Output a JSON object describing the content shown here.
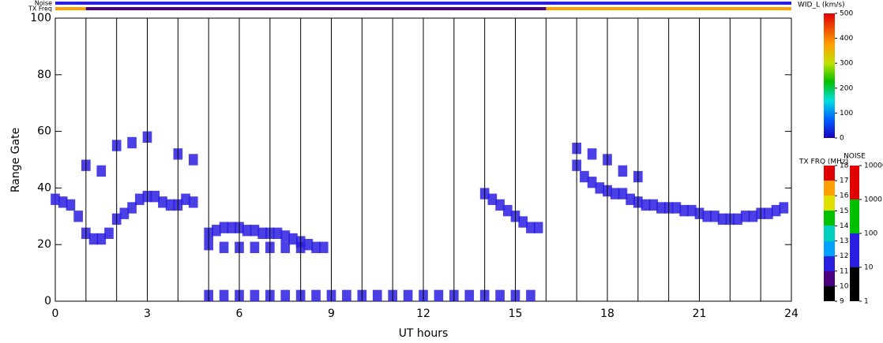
{
  "chart_data": {
    "type": "range-time",
    "xlabel": "UT hours",
    "ylabel": "Range Gate",
    "xlim": [
      0,
      24
    ],
    "ylim": [
      0,
      100
    ],
    "xticks": [
      0,
      3,
      6,
      9,
      12,
      15,
      18,
      21,
      24
    ],
    "yticks": [
      0,
      20,
      40,
      60,
      80,
      100
    ],
    "noise_label": "Noise",
    "txfreq_label": "TX Freq",
    "tx_low_span": [
      1,
      16
    ],
    "color": "#2a1fe0",
    "points": {
      "x": [
        0,
        0.25,
        0.5,
        0.75,
        1,
        1.25,
        1.5,
        1.75,
        2,
        2.25,
        2.5,
        2.75,
        3,
        3.25,
        3.5,
        3.75,
        4,
        4.25,
        4.5,
        5,
        5.25,
        5.5,
        5.75,
        6,
        6.25,
        6.5,
        6.75,
        7,
        7.25,
        7.5,
        7.75,
        8,
        8.25,
        8.5,
        8.75,
        5,
        5.5,
        6,
        6.5,
        7,
        7.5,
        8,
        14,
        14.25,
        14.5,
        14.75,
        15,
        15.25,
        15.5,
        15.75,
        17,
        17.25,
        17.5,
        17.75,
        18,
        18.25,
        18.5,
        18.75,
        19,
        19.25,
        19.5,
        19.75,
        20,
        20.25,
        20.5,
        20.75,
        21,
        21.25,
        21.5,
        21.75,
        22,
        22.25,
        22.5,
        22.75,
        23,
        23.25,
        23.5,
        23.75,
        5,
        5.5,
        6,
        6.5,
        7,
        7.5,
        8,
        8.5,
        9,
        9.5,
        10,
        10.5,
        11,
        11.5,
        12,
        12.5,
        13,
        13.5,
        14,
        14.5,
        15,
        15.5,
        1,
        1.5,
        2,
        2.5,
        3,
        4,
        4.5,
        17,
        17.5,
        18,
        18.5,
        19
      ],
      "y": [
        36,
        35,
        34,
        30,
        24,
        22,
        22,
        24,
        29,
        31,
        33,
        36,
        37,
        37,
        35,
        34,
        34,
        36,
        35,
        24,
        25,
        26,
        26,
        26,
        25,
        25,
        24,
        24,
        24,
        23,
        22,
        21,
        20,
        19,
        19,
        20,
        19,
        19,
        19,
        19,
        19,
        19,
        38,
        36,
        34,
        32,
        30,
        28,
        26,
        26,
        48,
        44,
        42,
        40,
        39,
        38,
        38,
        36,
        35,
        34,
        34,
        33,
        33,
        33,
        32,
        32,
        31,
        30,
        30,
        29,
        29,
        29,
        30,
        30,
        31,
        31,
        32,
        33,
        2,
        2,
        2,
        2,
        2,
        2,
        2,
        2,
        2,
        2,
        2,
        2,
        2,
        2,
        2,
        2,
        2,
        2,
        2,
        2,
        2,
        2,
        48,
        46,
        55,
        56,
        58,
        52,
        50,
        54,
        52,
        50,
        46,
        44
      ]
    },
    "colorbars": [
      {
        "label": "WID_L (km/s)",
        "ticks": [
          0,
          100,
          200,
          300,
          400,
          500
        ]
      },
      {
        "label": "TX FRQ (MHz)",
        "ticks": [
          9,
          10,
          11,
          12,
          13,
          14,
          15,
          16,
          17,
          18
        ]
      },
      {
        "label": "NOISE",
        "log": true,
        "ticks": [
          1,
          10,
          100,
          1000,
          10000
        ]
      }
    ]
  }
}
